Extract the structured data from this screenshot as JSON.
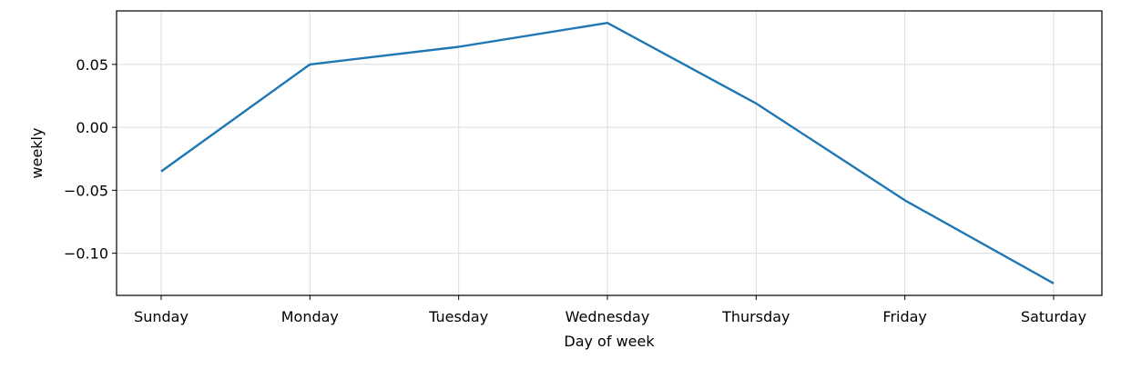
{
  "chart_data": {
    "type": "line",
    "title": "",
    "xlabel": "Day of week",
    "ylabel": "weekly",
    "categories": [
      "Sunday",
      "Monday",
      "Tuesday",
      "Wednesday",
      "Thursday",
      "Friday",
      "Saturday"
    ],
    "series": [
      {
        "values": [
          -0.035,
          0.05,
          0.064,
          0.083,
          0.019,
          -0.058,
          -0.124
        ],
        "color": "#1f77b4"
      }
    ],
    "yticks": [
      0.05,
      0.0,
      -0.05,
      -0.1
    ],
    "ytick_labels": [
      "0.05",
      "0.00",
      "−0.05",
      "−0.10"
    ],
    "ylim": [
      -0.1335,
      0.0925
    ],
    "grid": true
  }
}
